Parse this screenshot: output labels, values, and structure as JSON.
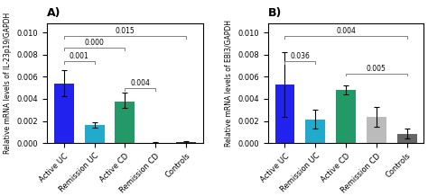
{
  "chart_data": [
    {
      "type": "bar",
      "title": "A)",
      "y_label": "Relative mRNA levels of IL-23p19/GAPDH",
      "categories": [
        "Active UC",
        "Remission UC",
        "Active CD",
        "Remission CD",
        "Controls"
      ],
      "values": [
        0.0054,
        0.00165,
        0.00375,
        5e-05,
        8e-05
      ],
      "error_upper": [
        0.00115,
        0.00025,
        0.0008,
        8e-05,
        7e-05
      ],
      "error_lower": [
        0.00115,
        0.00025,
        0.0006,
        4e-05,
        5e-05
      ],
      "colors": [
        "#2222ee",
        "#22aacc",
        "#229966",
        "#555555",
        "#333333"
      ],
      "ylim": [
        0,
        0.0108
      ],
      "yticks": [
        {
          "value": 0.0,
          "label": "0.000"
        },
        {
          "value": 0.002,
          "label": "0.002"
        },
        {
          "value": 0.004,
          "label": "0.004"
        },
        {
          "value": 0.006,
          "label": "0.006"
        },
        {
          "value": 0.008,
          "label": "0.008"
        },
        {
          "value": 0.01,
          "label": "0.010"
        }
      ],
      "grid": false,
      "annotations": [
        {
          "from": "Active UC",
          "to": "Remission UC",
          "y": 0.0074,
          "label": "0.001"
        },
        {
          "from": "Active UC",
          "to": "Active CD",
          "y": 0.0086,
          "label": "0.000"
        },
        {
          "from": "Active UC",
          "to": "Controls",
          "y": 0.0097,
          "label": "0.015"
        },
        {
          "from": "Active CD",
          "to": "Remission CD",
          "y": 0.005,
          "label": "0.004"
        }
      ]
    },
    {
      "type": "bar",
      "title": "B)",
      "y_label": "Relative mRNA levels of EBI3/GAPDH",
      "categories": [
        "Active UC",
        "Remission UC",
        "Active CD",
        "Remission CD",
        "Controls"
      ],
      "values": [
        0.0053,
        0.00215,
        0.0048,
        0.00235,
        0.00085
      ],
      "error_upper": [
        0.0029,
        0.00085,
        0.00042,
        0.0009,
        0.00045
      ],
      "error_lower": [
        0.0029,
        0.00085,
        0.00042,
        0.0009,
        0.0004
      ],
      "colors": [
        "#2222ee",
        "#22aacc",
        "#229966",
        "#bbbbbb",
        "#666666"
      ],
      "ylim": [
        0,
        0.0108
      ],
      "yticks": [
        {
          "value": 0.0,
          "label": "0.000"
        },
        {
          "value": 0.002,
          "label": "0.002"
        },
        {
          "value": 0.004,
          "label": "0.004"
        },
        {
          "value": 0.006,
          "label": "0.006"
        },
        {
          "value": 0.008,
          "label": "0.008"
        },
        {
          "value": 0.01,
          "label": "0.010"
        }
      ],
      "grid": false,
      "annotations": [
        {
          "from": "Active UC",
          "to": "Remission UC",
          "y": 0.0074,
          "label": "0.036"
        },
        {
          "from": "Active UC",
          "to": "Controls",
          "y": 0.0097,
          "label": "0.004"
        },
        {
          "from": "Active CD",
          "to": "Controls",
          "y": 0.0063,
          "label": "0.005"
        }
      ]
    }
  ]
}
